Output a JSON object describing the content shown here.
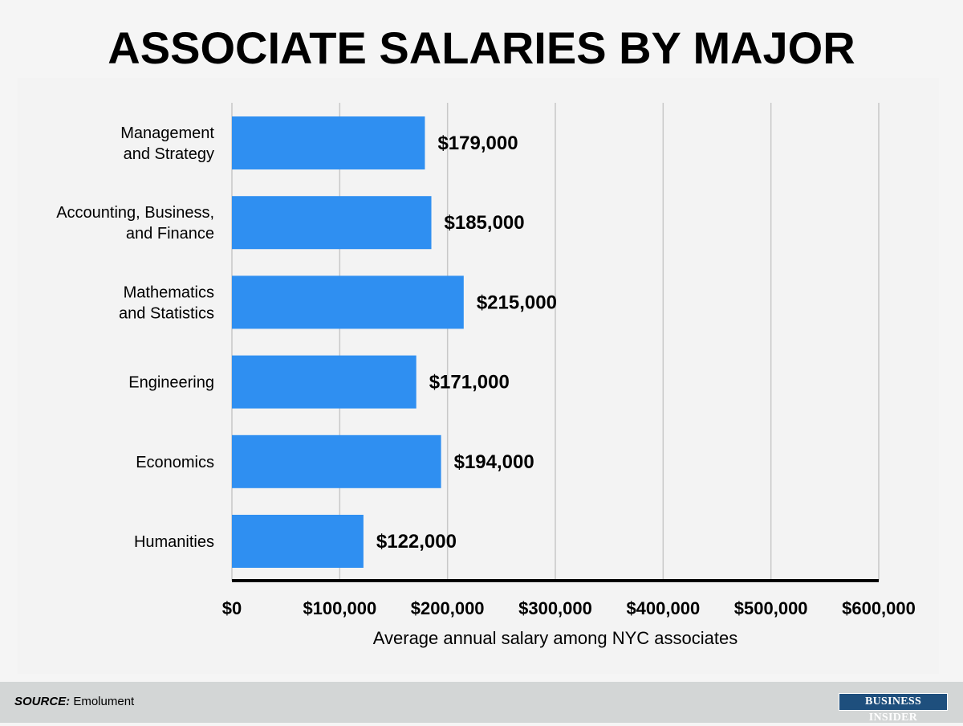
{
  "title": "ASSOCIATE SALARIES BY MAJOR",
  "colors": {
    "bar": "#2f8ff1",
    "grid": "#c8c8c8",
    "axis": "#000000",
    "background": "#f5f5f5",
    "footer": "#d3d6d6",
    "brand_bg": "#1e4f7d"
  },
  "chart_data": {
    "type": "bar",
    "orientation": "horizontal",
    "categories": [
      [
        "Management",
        "and Strategy"
      ],
      [
        "Accounting, Business,",
        "and Finance"
      ],
      [
        "Mathematics",
        "and Statistics"
      ],
      [
        "Engineering"
      ],
      [
        "Economics"
      ],
      [
        "Humanities"
      ]
    ],
    "values": [
      179000,
      185000,
      215000,
      171000,
      194000,
      122000
    ],
    "data_labels": [
      "$179,000",
      "$185,000",
      "$215,000",
      "$171,000",
      "$194,000",
      "$122,000"
    ],
    "xlim": [
      0,
      600000
    ],
    "xticks": [
      0,
      100000,
      200000,
      300000,
      400000,
      500000,
      600000
    ],
    "xtick_labels": [
      "$0",
      "$100,000",
      "$200,000",
      "$300,000",
      "$400,000",
      "$500,000",
      "$600,000"
    ],
    "xlabel": "Average annual salary among NYC associates",
    "grid": true
  },
  "footer": {
    "source_label": "SOURCE:",
    "source_text": "Emolument",
    "brand": "BUSINESS INSIDER"
  }
}
